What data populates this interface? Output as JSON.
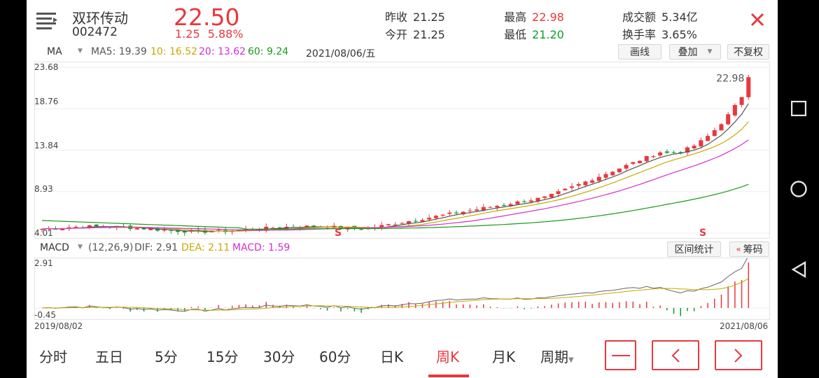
{
  "stock": {
    "name": "双环传动",
    "code": "002472",
    "price": "22.50",
    "change": "1.25",
    "change_pct": "5.88%"
  },
  "quote": {
    "prev_close_label": "昨收",
    "prev_close": "21.25",
    "open_label": "今开",
    "open": "21.25",
    "high_label": "最高",
    "high": "22.98",
    "low_label": "最低",
    "low": "21.20",
    "turnover_label": "成交额",
    "turnover": "5.34亿",
    "turnover_rate_label": "换手率",
    "turnover_rate": "3.65%"
  },
  "ma_bar": {
    "selector": "MA",
    "ma5": "MA5: 19.39",
    "ma10": "10: 16.52",
    "ma20": "20: 13.62",
    "ma60": "60: 9.24",
    "date": "2021/08/06/五",
    "draw_label": "画线",
    "overlay_label": "叠加",
    "adjust_label": "不复权"
  },
  "y_axis": [
    "23.68",
    "18.76",
    "13.84",
    "8.93",
    "4.01"
  ],
  "high_marker": "22.98",
  "signal_marks": [
    "S",
    "S"
  ],
  "macd_bar": {
    "selector": "MACD",
    "params": "(12,26,9)",
    "dif": "DIF: 2.91",
    "dea": "DEA: 2.11",
    "macd": "MACD: 1.59",
    "range_stats": "区间统计",
    "chips": "筹码"
  },
  "macd_axis": {
    "top": "2.91",
    "bottom": "-0.45"
  },
  "x_axis": {
    "start": "2019/08/02",
    "end": "2021/08/06"
  },
  "periods": [
    "分时",
    "五日",
    "5分",
    "15分",
    "30分",
    "60分",
    "日K",
    "周K",
    "月K",
    "周期"
  ],
  "active_period": "周K",
  "colors": {
    "up": "#e8383d",
    "down": "#0a9e2b",
    "ma5": "#555555",
    "ma10": "#c8a800",
    "ma20": "#d030d0",
    "ma60": "#1a9a1a"
  },
  "chart_data": {
    "type": "candlestick",
    "y_range": [
      4.01,
      23.68
    ],
    "last_candles": [
      {
        "open": 21.25,
        "close": 22.5,
        "high": 22.98,
        "low": 21.2
      }
    ],
    "ma": {
      "ma5": 19.39,
      "ma10": 16.52,
      "ma20": 13.62,
      "ma60": 9.24
    },
    "macd": {
      "dif": 2.91,
      "dea": 2.11,
      "macd": 1.59,
      "range": [
        -0.45,
        2.91
      ]
    }
  }
}
